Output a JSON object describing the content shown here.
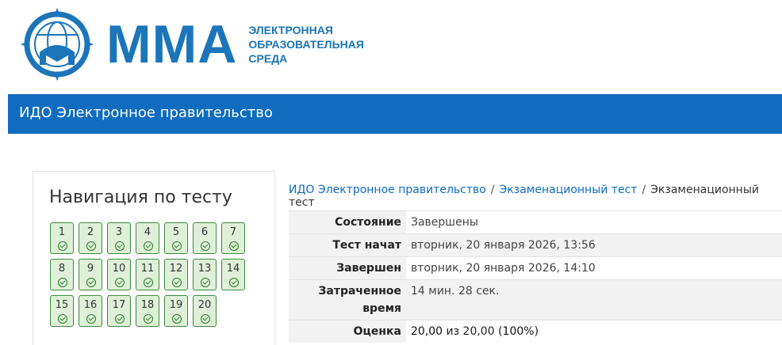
{
  "logo": {
    "name": "ММА",
    "subtitle": [
      "ЭЛЕКТРОННАЯ",
      "ОБРАЗОВАТЕЛЬНАЯ",
      "СРЕДА"
    ],
    "color": "#1c75b9"
  },
  "header": {
    "title": "ИДО Электронное правительство",
    "color": "#0f6cbf"
  },
  "nav": {
    "title": "Навигация по тесту",
    "questions": [
      "1",
      "2",
      "3",
      "4",
      "5",
      "6",
      "7",
      "8",
      "9",
      "10",
      "11",
      "12",
      "13",
      "14",
      "15",
      "16",
      "17",
      "18",
      "19",
      "20"
    ],
    "state": "answered-correct"
  },
  "breadcrumb": [
    "ИДО Электронное правительство",
    "Экзаменационный тест",
    "Экзаменационный тест"
  ],
  "summary": [
    {
      "label": "Состояние",
      "value": "Завершены"
    },
    {
      "label": "Тест начат",
      "value": "вторник, 20 января 2026, 13:56"
    },
    {
      "label": "Завершен",
      "value": "вторник, 20 января 2026, 14:10"
    },
    {
      "label": "Затраченное время",
      "value": "14 мин. 28 сек."
    },
    {
      "label": "Оценка",
      "score": "20,00",
      "of": "из 20,00 (",
      "percent": "100%",
      "close": ")"
    }
  ]
}
